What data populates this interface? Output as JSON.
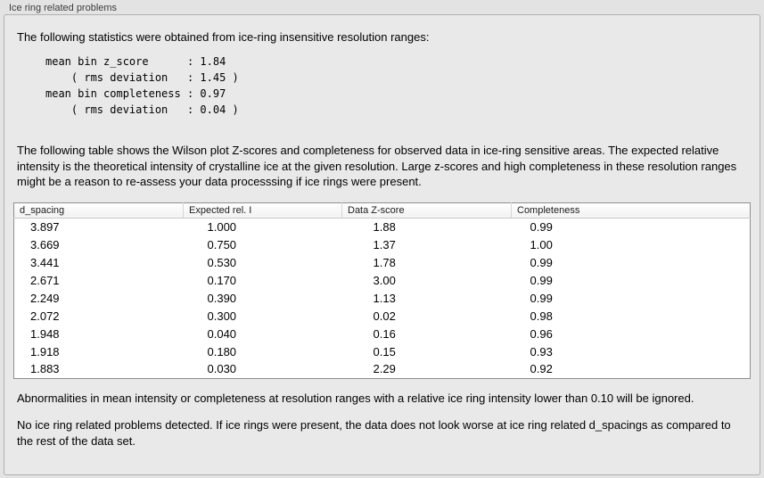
{
  "panel": {
    "title": "Ice ring related problems",
    "intro": "The following statistics were obtained from ice-ring insensitive resolution ranges:",
    "stats_block": "mean bin z_score      : 1.84\n    ( rms deviation   : 1.45 )\nmean bin completeness : 0.97\n    ( rms deviation   : 0.04 )",
    "table_description": "The following table shows the Wilson plot Z-scores and completeness for observed data in ice-ring sensitive areas. The expected relative intensity is the theoretical intensity of crystalline ice at the given resolution. Large z-scores and high completeness in these resolution ranges might be a reason to re-assess your data processsing if ice rings were present.",
    "note_ignore": "Abnormalities in mean intensity or completeness at resolution ranges with a relative ice ring intensity lower than 0.10 will be ignored.",
    "conclusion": "No ice ring related problems detected. If ice rings were present, the data does not look worse at ice ring related d_spacings as compared to the rest of the data set."
  },
  "table": {
    "columns": [
      "d_spacing",
      "Expected rel. I",
      "Data Z-score",
      "Completeness"
    ],
    "rows": [
      [
        "3.897",
        "1.000",
        "1.88",
        "0.99"
      ],
      [
        "3.669",
        "0.750",
        "1.37",
        "1.00"
      ],
      [
        "3.441",
        "0.530",
        "1.78",
        "0.99"
      ],
      [
        "2.671",
        "0.170",
        "3.00",
        "0.99"
      ],
      [
        "2.249",
        "0.390",
        "1.13",
        "0.99"
      ],
      [
        "2.072",
        "0.300",
        "0.02",
        "0.98"
      ],
      [
        "1.948",
        "0.040",
        "0.16",
        "0.96"
      ],
      [
        "1.918",
        "0.180",
        "0.15",
        "0.93"
      ],
      [
        "1.883",
        "0.030",
        "2.29",
        "0.92"
      ]
    ]
  }
}
